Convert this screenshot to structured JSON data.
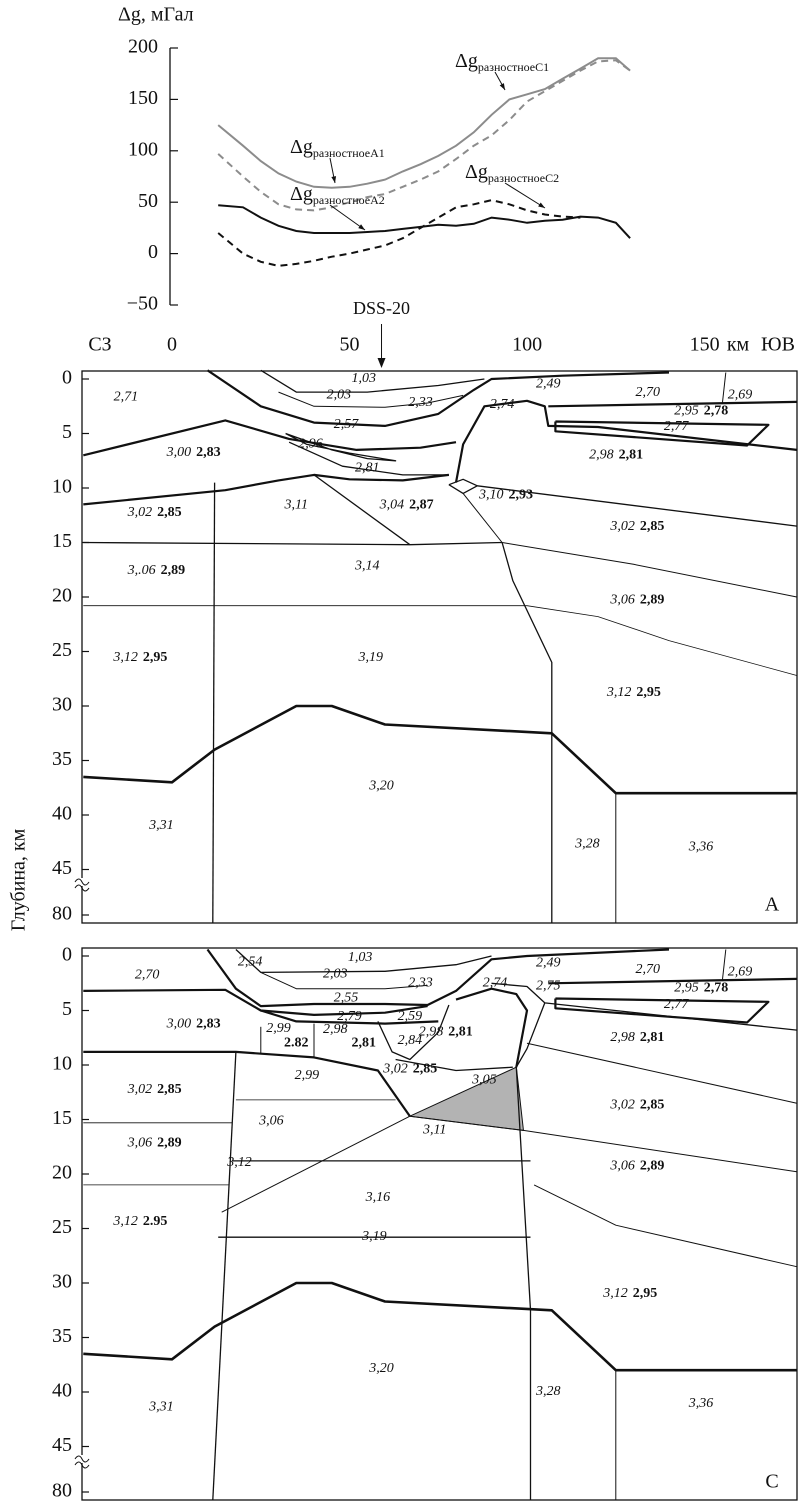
{
  "chart_data": {
    "type": "line",
    "ylabel": "Δg, мГал",
    "xlabel": "км",
    "x_left": "СЗ",
    "x_right": "ЮВ",
    "annotation": "DSS-20",
    "annotation_x": 59,
    "xlim": [
      0,
      176
    ],
    "xticks": [
      0,
      50,
      100,
      150
    ],
    "ylim": [
      -50,
      200
    ],
    "yticks": [
      {
        "value": -50,
        "label": "−50"
      },
      0,
      50,
      100,
      150,
      200
    ],
    "x": [
      13,
      20,
      25,
      30,
      35,
      40,
      45,
      50,
      55,
      60,
      65,
      70,
      75,
      80,
      85,
      90,
      95,
      100,
      105,
      110,
      115,
      120,
      125,
      129
    ],
    "series": [
      {
        "name": "Δg",
        "subscript": "разностноеA1",
        "color": "#8c8c8c",
        "dashed": false,
        "values": [
          125,
          105,
          90,
          78,
          70,
          65,
          64,
          65,
          68,
          72,
          80,
          87,
          95,
          105,
          118,
          135,
          150,
          155,
          160,
          170,
          180,
          190,
          190,
          178
        ]
      },
      {
        "name": "Δg",
        "subscript": "разностноеC1",
        "color": "#8c8c8c",
        "dashed": true,
        "values": [
          97,
          75,
          60,
          48,
          43,
          42,
          45,
          50,
          55,
          58,
          65,
          72,
          80,
          92,
          105,
          115,
          130,
          148,
          158,
          168,
          178,
          187,
          188,
          178
        ]
      },
      {
        "name": "Δg",
        "subscript": "разностноеA2",
        "color": "#111111",
        "dashed": false,
        "values": [
          47,
          45,
          35,
          27,
          22,
          20,
          20,
          20,
          21,
          22,
          24,
          26,
          28,
          27,
          29,
          35,
          33,
          30,
          32,
          33,
          36,
          35,
          30,
          15
        ]
      },
      {
        "name": "Δg",
        "subscript": "разностноеC2",
        "color": "#111111",
        "dashed": true,
        "values": [
          20,
          0,
          -8,
          -12,
          -10,
          -7,
          -3,
          0,
          4,
          8,
          15,
          25,
          35,
          45,
          48,
          52,
          48,
          42,
          38,
          36,
          35,
          null,
          null,
          null
        ]
      }
    ]
  },
  "depth_label": "Глубина, км",
  "sections": [
    {
      "letter": "А",
      "depth_ticks": [
        0,
        5,
        10,
        15,
        20,
        25,
        30,
        35,
        40,
        45,
        80
      ],
      "labels": [
        {
          "text": "2,71"
        },
        {
          "text": "1,03"
        },
        {
          "text": "2,03"
        },
        {
          "text": "2,33"
        },
        {
          "text": "2,49"
        },
        {
          "text": "2,70"
        },
        {
          "text": "2,69"
        },
        {
          "text": "2,57"
        },
        {
          "text": "2,74"
        },
        {
          "text": "2,95",
          "bold": "2,78"
        },
        {
          "text": "2,77"
        },
        {
          "text": "2,96"
        },
        {
          "text": "3,00",
          "bold": "2,83"
        },
        {
          "text": "2,98",
          "bold": "2,81"
        },
        {
          "text": "2,81"
        },
        {
          "text": "3,02",
          "bold": "2,85"
        },
        {
          "text": "3,11"
        },
        {
          "text": "3,04",
          "bold": "2,87"
        },
        {
          "text": "3,10",
          "bold": "2,93"
        },
        {
          "text": "3,02",
          "bold": "2,85"
        },
        {
          "text": "3,.06",
          "bold": "2,89"
        },
        {
          "text": "3,14"
        },
        {
          "text": "3,06",
          "bold": "2,89"
        },
        {
          "text": "3,12",
          "bold": "2,95"
        },
        {
          "text": "3,19"
        },
        {
          "text": "3,12",
          "bold": "2,95"
        },
        {
          "text": "3,20"
        },
        {
          "text": "3,31"
        },
        {
          "text": "3,28"
        },
        {
          "text": "3,36"
        }
      ]
    },
    {
      "letter": "С",
      "depth_ticks": [
        0,
        5,
        10,
        15,
        20,
        25,
        30,
        35,
        40,
        45,
        80
      ],
      "labels": [
        {
          "text": "2,70"
        },
        {
          "text": "2,54"
        },
        {
          "text": "1,03"
        },
        {
          "text": "2,03"
        },
        {
          "text": "2,33"
        },
        {
          "text": "2,49"
        },
        {
          "text": "2,70"
        },
        {
          "text": "2,69"
        },
        {
          "text": "2,74"
        },
        {
          "text": "2,75"
        },
        {
          "text": "2,95",
          "bold": "2,78"
        },
        {
          "text": "2,77"
        },
        {
          "text": "2,55"
        },
        {
          "text": "2,79"
        },
        {
          "text": "2,59"
        },
        {
          "text": "3,00",
          "bold": "2,83"
        },
        {
          "text": "2,99",
          "bold": "2.82"
        },
        {
          "text": "2,98",
          "bold": "2,81"
        },
        {
          "text": "2,84"
        },
        {
          "text": "2,98",
          "bold": "2,81"
        },
        {
          "text": "2,98",
          "bold": "2,81"
        },
        {
          "text": "2,99"
        },
        {
          "text": "3,02",
          "bold": "2,85"
        },
        {
          "text": "3,05"
        },
        {
          "text": "3,02",
          "bold": "2,85"
        },
        {
          "text": "3,02",
          "bold": "2,85"
        },
        {
          "text": "3,06"
        },
        {
          "text": "3,11"
        },
        {
          "text": "3,06",
          "bold": "2,89"
        },
        {
          "text": "3,12"
        },
        {
          "text": "3,16"
        },
        {
          "text": "3,06",
          "bold": "2,89"
        },
        {
          "text": "3,12",
          "bold": "2.95"
        },
        {
          "text": "3,19"
        },
        {
          "text": "3,12",
          "bold": "2,95"
        },
        {
          "text": "3,20"
        },
        {
          "text": "3,31"
        },
        {
          "text": "3,28"
        },
        {
          "text": "3,36"
        }
      ]
    }
  ]
}
